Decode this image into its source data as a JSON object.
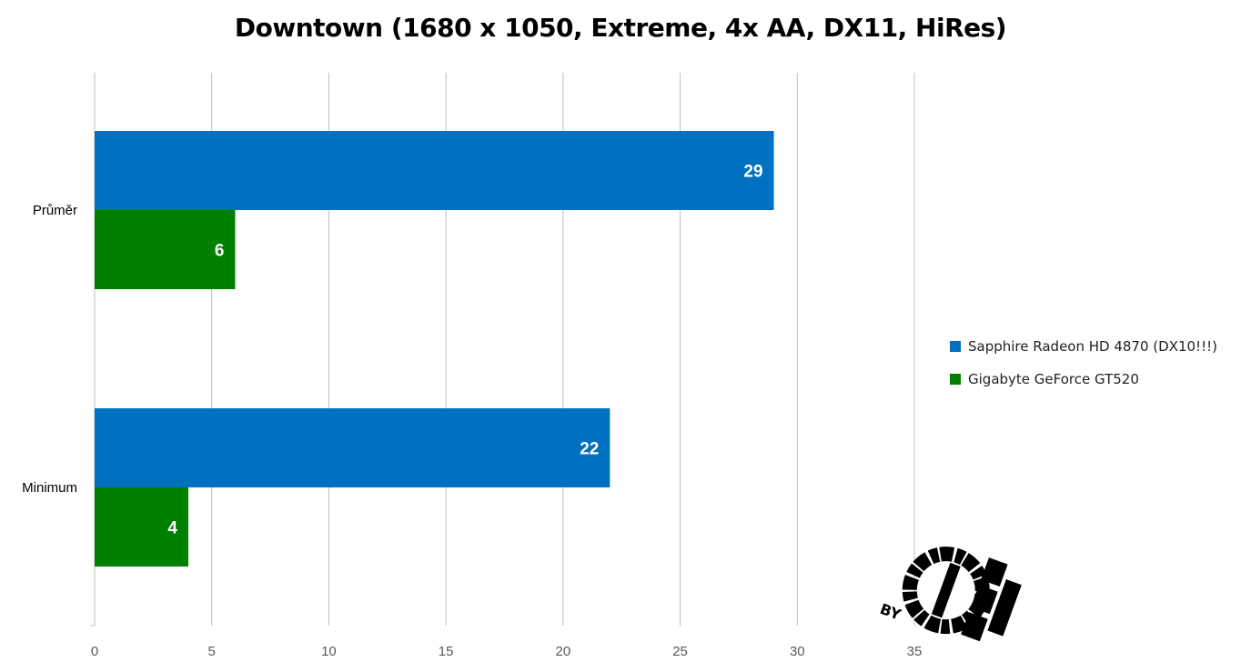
{
  "chart_data": {
    "type": "bar",
    "orientation": "horizontal",
    "title": "Downtown (1680 x 1050, Extreme, 4x AA, DX11, HiRes)",
    "categories": [
      "Průměr",
      "Minimum"
    ],
    "series": [
      {
        "name": "Sapphire Radeon HD 4870 (DX10!!!)",
        "color": "#0070C0",
        "values": [
          29,
          22
        ]
      },
      {
        "name": "Gigabyte GeForce GT520",
        "color": "#008000",
        "values": [
          6,
          4
        ]
      }
    ],
    "xlim": [
      0,
      35
    ],
    "xticks": [
      0,
      5,
      10,
      15,
      20,
      25,
      30,
      35
    ],
    "grid": true,
    "legend_position": "right",
    "data_labels": true
  },
  "watermark": {
    "text": "BY",
    "logo_icon": "grunge-logo-icon"
  }
}
